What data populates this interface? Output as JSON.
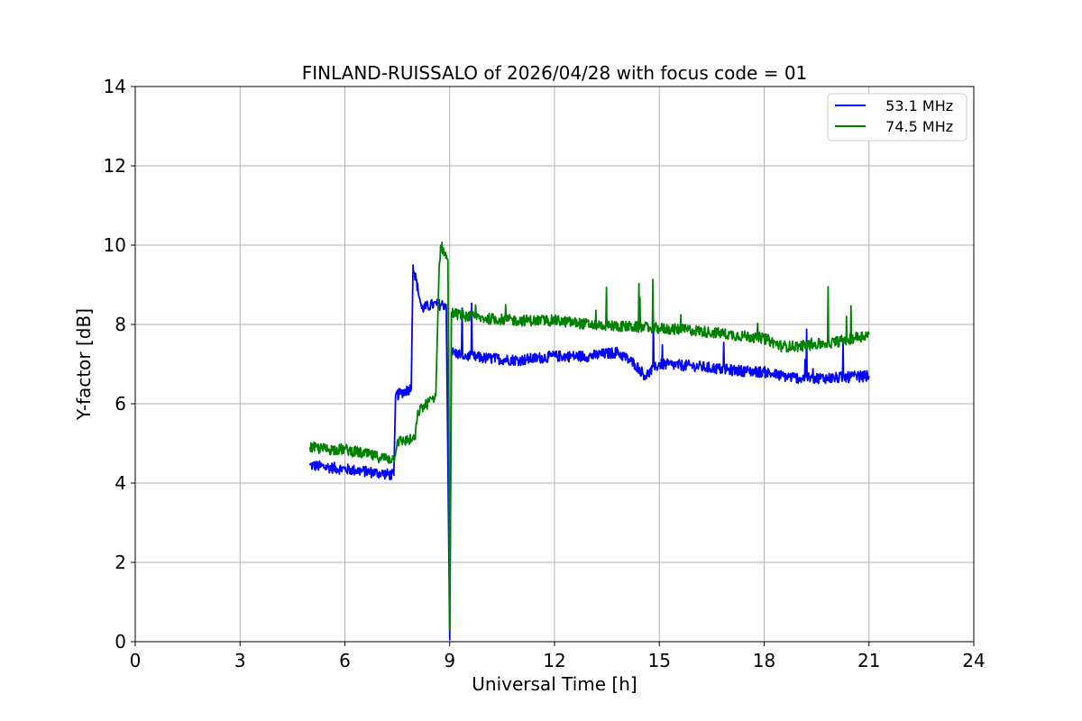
{
  "chart_data": {
    "type": "line",
    "title": "FINLAND-RUISSALO of 2026/04/28 with focus code = 01",
    "xlabel": "Universal Time [h]",
    "ylabel": "Y-factor [dB]",
    "xlim": [
      0,
      24
    ],
    "ylim": [
      0,
      14
    ],
    "xticks": [
      0,
      3,
      6,
      9,
      12,
      15,
      18,
      21,
      24
    ],
    "yticks": [
      0,
      2,
      4,
      6,
      8,
      10,
      12,
      14
    ],
    "grid": true,
    "legend_position": "top-right",
    "series": [
      {
        "name": "  53.1 MHz",
        "color": "#0000ff",
        "x": [
          5.0,
          5.5,
          6.0,
          6.5,
          7.0,
          7.4,
          7.45,
          7.9,
          7.95,
          8.2,
          8.5,
          8.9,
          8.95,
          9.0,
          9.05,
          9.5,
          10.0,
          11.0,
          12.0,
          13.0,
          13.8,
          14.3,
          14.6,
          15.0,
          16.0,
          17.0,
          18.0,
          18.5,
          19.0,
          20.0,
          21.0
        ],
        "y": [
          4.45,
          4.4,
          4.35,
          4.3,
          4.25,
          4.2,
          6.2,
          6.4,
          9.5,
          8.4,
          8.5,
          8.5,
          4.5,
          0.05,
          7.3,
          7.2,
          7.15,
          7.1,
          7.2,
          7.2,
          7.3,
          7.0,
          6.7,
          7.0,
          6.95,
          6.85,
          6.8,
          6.7,
          6.65,
          6.65,
          6.7
        ]
      },
      {
        "name": "  74.5 MHz",
        "color": "#008000",
        "x": [
          5.0,
          5.5,
          6.0,
          6.5,
          7.0,
          7.4,
          7.5,
          8.0,
          8.1,
          8.6,
          8.7,
          8.75,
          8.95,
          9.0,
          9.05,
          9.5,
          10.0,
          11.0,
          12.0,
          13.0,
          14.0,
          15.0,
          16.0,
          17.0,
          18.0,
          18.5,
          19.0,
          20.0,
          21.0
        ],
        "y": [
          4.9,
          4.85,
          4.85,
          4.75,
          4.65,
          4.6,
          5.05,
          5.1,
          5.8,
          6.2,
          9.5,
          10.0,
          9.6,
          0.3,
          8.3,
          8.2,
          8.15,
          8.1,
          8.1,
          8.0,
          7.95,
          7.9,
          7.85,
          7.75,
          7.65,
          7.45,
          7.45,
          7.55,
          7.75
        ]
      }
    ]
  }
}
